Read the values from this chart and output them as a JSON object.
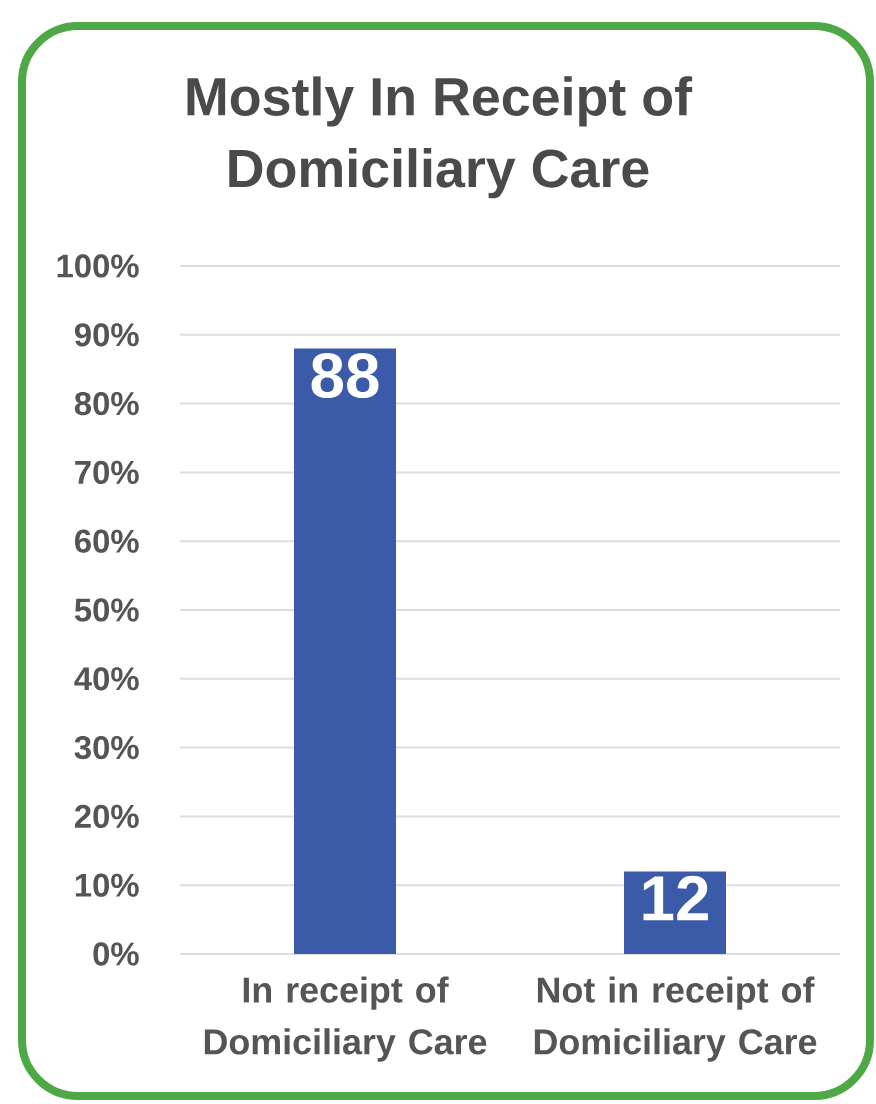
{
  "chart_data": {
    "type": "bar",
    "title": "Mostly In Receipt of Domiciliary Care",
    "categories": [
      "In receipt of Domiciliary Care",
      "Not in receipt of Domiciliary Care"
    ],
    "values": [
      88,
      12
    ],
    "color": "#3b5ba9",
    "ylim": [
      0,
      100
    ],
    "yticks": [
      {
        "value": 0,
        "label": "0%"
      },
      {
        "value": 10,
        "label": "10%"
      },
      {
        "value": 20,
        "label": "20%"
      },
      {
        "value": 30,
        "label": "30%"
      },
      {
        "value": 40,
        "label": "40%"
      },
      {
        "value": 50,
        "label": "50%"
      },
      {
        "value": 60,
        "label": "60%"
      },
      {
        "value": 70,
        "label": "70%"
      },
      {
        "value": 80,
        "label": "80%"
      },
      {
        "value": 90,
        "label": "90%"
      },
      {
        "value": 100,
        "label": "100%"
      }
    ],
    "grid": "y",
    "data_labels": true
  }
}
